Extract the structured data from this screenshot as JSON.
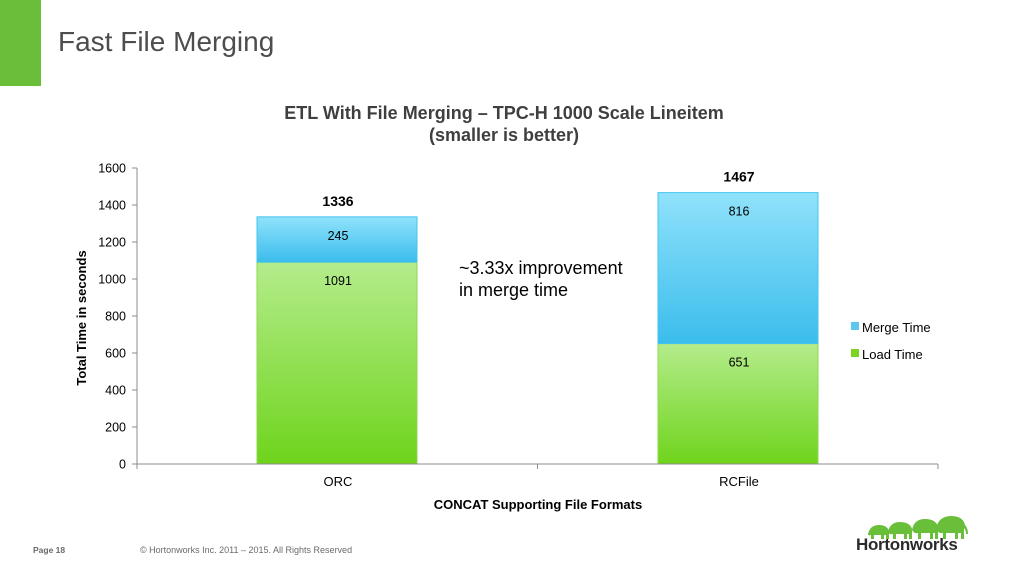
{
  "slide": {
    "title": "Fast File Merging",
    "page_label": "Page 18",
    "copyright": "© Hortonworks Inc. 2011 – 2015. All Rights Reserved",
    "logo_text": "Hortonworks",
    "accent_color": "#6abf3a"
  },
  "chart_data": {
    "type": "bar",
    "stacked": true,
    "title": "ETL With File Merging – TPC-H 1000 Scale Lineitem",
    "subtitle": "(smaller is better)",
    "xlabel": "CONCAT Supporting File Formats",
    "ylabel": "Total Time in seconds",
    "ylim": [
      0,
      1600
    ],
    "yticks": [
      0,
      200,
      400,
      600,
      800,
      1000,
      1200,
      1400,
      1600
    ],
    "categories": [
      "ORC",
      "RCFile"
    ],
    "series": [
      {
        "name": "Load Time",
        "values": [
          1091,
          651
        ],
        "color": "#7ed321"
      },
      {
        "name": "Merge Time",
        "values": [
          245,
          816
        ],
        "color": "#5cc8ef"
      }
    ],
    "totals": [
      1336,
      1467
    ],
    "legend_position": "right",
    "annotation": [
      "~3.33x improvement",
      "in merge time"
    ]
  }
}
